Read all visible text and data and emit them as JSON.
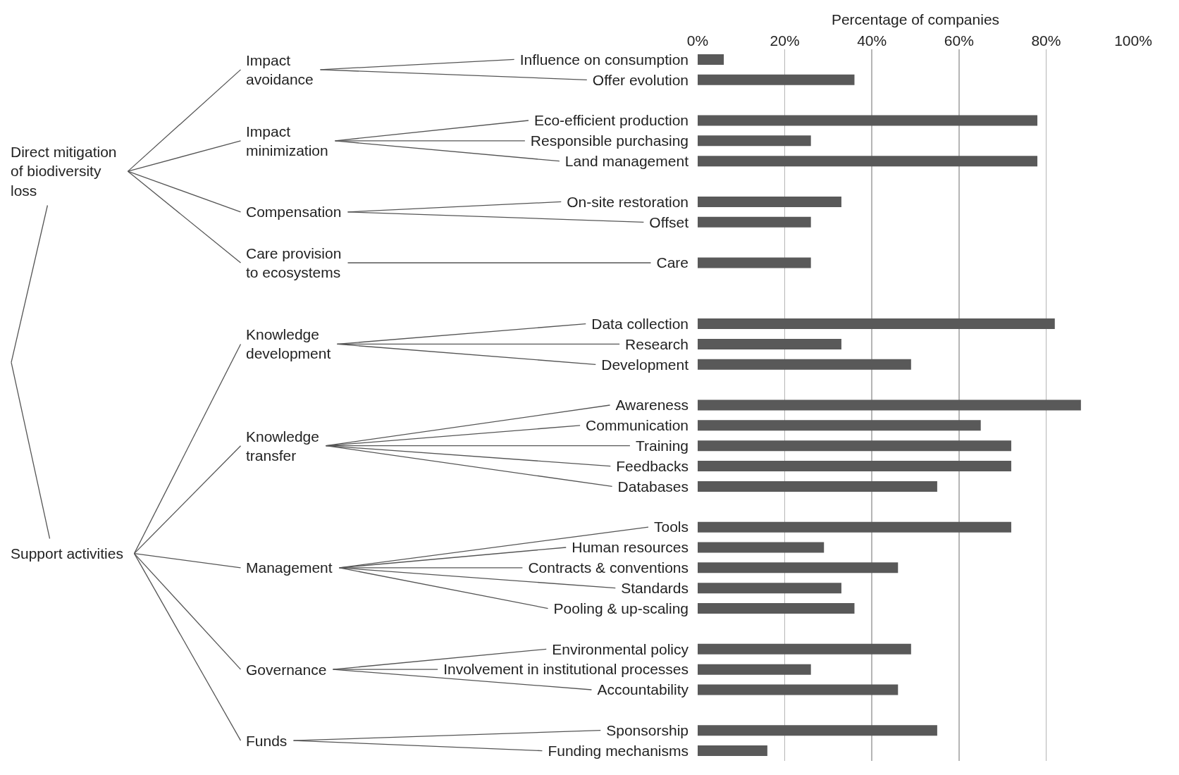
{
  "chart_data": {
    "type": "bar",
    "orientation": "horizontal",
    "xlabel": "Percentage of companies",
    "categories": [
      "Influence on consumption",
      "Offer evolution",
      null,
      "Eco-efficient production",
      "Responsible purchasing",
      "Land management",
      null,
      "On-site restoration",
      "Offset",
      null,
      "Care",
      null,
      null,
      "Data collection",
      "Research",
      "Development",
      null,
      "Awareness",
      "Communication",
      "Training",
      "Feedbacks",
      "Databases",
      null,
      "Tools",
      "Human resources",
      "Contracts & conventions",
      "Standards",
      "Pooling & up-scaling",
      null,
      "Environmental policy",
      "Involvement in institutional processes",
      "Accountability",
      null,
      "Sponsorship",
      "Funding mechanisms"
    ],
    "values": [
      6,
      36,
      null,
      78,
      26,
      78,
      null,
      33,
      26,
      null,
      26,
      null,
      null,
      82,
      33,
      49,
      null,
      88,
      65,
      72,
      72,
      55,
      null,
      72,
      29,
      46,
      33,
      36,
      null,
      49,
      26,
      46,
      null,
      55,
      16
    ],
    "color": "#595959",
    "xlim": [
      0,
      100
    ],
    "xticks": [
      {
        "value": 0,
        "label": "0%"
      },
      {
        "value": 20,
        "label": "20%"
      },
      {
        "value": 40,
        "label": "40%"
      },
      {
        "value": 60,
        "label": "60%"
      },
      {
        "value": 80,
        "label": "80%"
      },
      {
        "value": 100,
        "label": "100%"
      }
    ],
    "grid": "x",
    "annotations": [
      "Direct mitigation of biodiversity loss",
      "Impact avoidance",
      "Impact minimization",
      "Compensation",
      "Care provision to ecosystems",
      "Support activities",
      "Knowledge development",
      "Knowledge transfer",
      "Management",
      "Governance",
      "Funds"
    ]
  }
}
